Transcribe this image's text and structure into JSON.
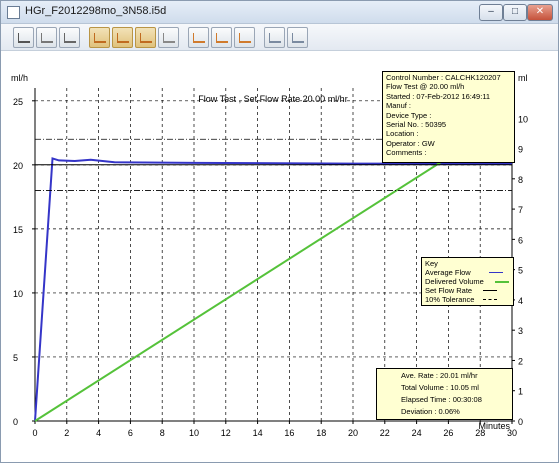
{
  "window": {
    "title": "HGr_F2012298mo_3N58.i5d",
    "min_label": "–",
    "max_label": "□",
    "close_label": "✕"
  },
  "toolbar": {
    "buttons": [
      {
        "icon": "keyboard-icon"
      },
      {
        "icon": "document-icon"
      },
      {
        "icon": "print-icon"
      },
      {
        "icon": "chart-flow-icon",
        "selected": true
      },
      {
        "icon": "chart-volume-icon",
        "selected": true
      },
      {
        "icon": "chart-combined-icon",
        "selected": true
      },
      {
        "icon": "chart-settings-icon"
      },
      {
        "icon": "scale-up-icon"
      },
      {
        "icon": "scale-fit-icon"
      },
      {
        "icon": "scale-down-icon"
      },
      {
        "icon": "page-prev-icon"
      },
      {
        "icon": "page-next-icon"
      }
    ]
  },
  "chart_data": {
    "type": "line",
    "title": "Flow Test , Set Flow Rate 20.00 ml/hr",
    "xlabel": "Minutes",
    "ylabel_left": "ml/h",
    "ylabel_right": "ml",
    "x_range": [
      0,
      30
    ],
    "y_left_range": [
      0,
      26
    ],
    "y_right_range": [
      0,
      11
    ],
    "x_ticks": [
      0,
      2,
      4,
      6,
      8,
      10,
      12,
      14,
      16,
      18,
      20,
      22,
      24,
      26,
      28,
      30
    ],
    "y_left_ticks": [
      0,
      5,
      10,
      15,
      20,
      25
    ],
    "y_right_ticks": [
      0,
      1,
      2,
      3,
      4,
      5,
      6,
      7,
      8,
      9,
      10
    ],
    "grid": true,
    "series": [
      {
        "name": "Average Flow",
        "axis": "left",
        "color": "#3535c8",
        "x": [
          0,
          1.1,
          1.5,
          2.5,
          3.5,
          5,
          10,
          20,
          30
        ],
        "y": [
          0,
          20.5,
          20.35,
          20.3,
          20.4,
          20.2,
          20.15,
          20.1,
          20.1
        ]
      },
      {
        "name": "Delivered Volume",
        "axis": "right",
        "color": "#55c23a",
        "x": [
          0,
          30
        ],
        "y": [
          0,
          10.05
        ]
      },
      {
        "name": "Set Flow Rate",
        "axis": "left",
        "color": "#000000",
        "x": [
          0,
          30
        ],
        "y": [
          20,
          20
        ]
      },
      {
        "name": "10% Tolerance",
        "axis": "left",
        "color": "#000000",
        "tolerance": [
          18,
          22
        ]
      }
    ],
    "legend": {
      "title": "Key",
      "placement": "right",
      "entries": [
        "Average Flow",
        "Delivered Volume",
        "Set Flow Rate",
        "10% Tolerance"
      ]
    }
  },
  "info": {
    "lines": [
      "Control Number  :  CALCHK120207",
      "Flow Test @ 20.00 ml/h",
      "Started : 07-Feb-2012  16:49:11",
      "Manuf :",
      "Device Type :",
      "Serial No. : 50395",
      "Location :",
      "Operator : GW",
      "Comments :"
    ]
  },
  "stats": {
    "ave_rate": "Ave. Rate : 20.01 ml/hr",
    "total_volume": "Total Volume : 10.05 ml",
    "elapsed_time": "Elapsed Time : 00:30:08",
    "deviation": "Deviation : 0.06%"
  }
}
